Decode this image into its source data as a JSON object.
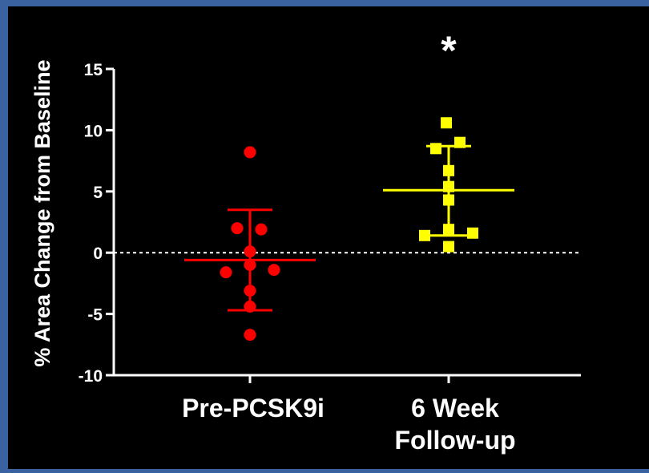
{
  "chart_data": {
    "type": "scatter",
    "ylabel": "% Area Change from Baseline",
    "ylim": [
      -10,
      15
    ],
    "yticks": [
      15,
      10,
      5,
      0,
      -5,
      -10
    ],
    "categories": [
      "Pre-PCSK9i",
      "6 Week\nFollow-up"
    ],
    "reference_line": 0,
    "significance_marker": "*",
    "series": [
      {
        "category": "Pre-PCSK9i",
        "color": "#ff0000",
        "marker": "circle",
        "values": [
          8.2,
          2.0,
          1.9,
          0.1,
          -1.0,
          -1.6,
          -1.4,
          -3.1,
          -4.4,
          -6.7
        ],
        "mean": -0.6,
        "error_upper": 3.5,
        "error_lower": -4.7
      },
      {
        "category": "6 Week\nFollow-up",
        "color": "#ffff00",
        "marker": "square",
        "values": [
          10.6,
          9.0,
          8.5,
          6.7,
          5.4,
          4.3,
          1.9,
          1.6,
          1.4,
          0.5
        ],
        "mean": 5.1,
        "error_upper": 8.7,
        "error_lower": 1.4
      }
    ]
  }
}
